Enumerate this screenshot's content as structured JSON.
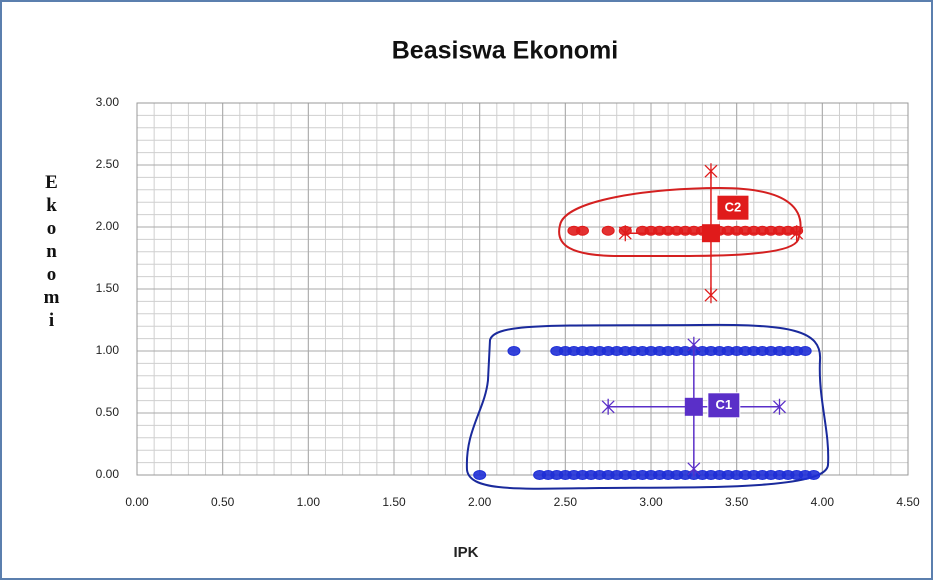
{
  "chart_data": {
    "type": "scatter",
    "title": "Beasiswa Ekonomi",
    "xlabel": "IPK",
    "ylabel": "Ekonomi",
    "xlim": [
      0,
      4.5
    ],
    "ylim": [
      0,
      3
    ],
    "xticks": [
      {
        "value": 0,
        "label": "0.00"
      },
      {
        "value": 0.5,
        "label": "0.50"
      },
      {
        "value": 1,
        "label": "1.00"
      },
      {
        "value": 1.5,
        "label": "1.50"
      },
      {
        "value": 2,
        "label": "2.00"
      },
      {
        "value": 2.5,
        "label": "2.50"
      },
      {
        "value": 3,
        "label": "3.00"
      },
      {
        "value": 3.5,
        "label": "3.50"
      },
      {
        "value": 4,
        "label": "4.00"
      },
      {
        "value": 4.5,
        "label": "4.50"
      }
    ],
    "yticks": [
      {
        "value": 0,
        "label": "0.00"
      },
      {
        "value": 0.5,
        "label": "0.50"
      },
      {
        "value": 1,
        "label": "1.00"
      },
      {
        "value": 1.5,
        "label": "1.50"
      },
      {
        "value": 2,
        "label": "2.00"
      },
      {
        "value": 2.5,
        "label": "2.50"
      },
      {
        "value": 3,
        "label": "3.00"
      }
    ],
    "grid": true,
    "xminor": 0.1,
    "yminor": 0.1,
    "series": [
      {
        "color": "#1f2fd6",
        "x": [
          2.0,
          2.35,
          2.4,
          2.45,
          2.5,
          2.55,
          2.6,
          2.65,
          2.7,
          2.75,
          2.8,
          2.85,
          2.9,
          2.95,
          3.0,
          3.05,
          3.1,
          3.15,
          3.2,
          3.25,
          3.3,
          3.35,
          3.4,
          3.45,
          3.5,
          3.55,
          3.6,
          3.65,
          3.7,
          3.75,
          3.8,
          3.85,
          3.9,
          3.95
        ],
        "values": [
          0,
          0,
          0,
          0,
          0,
          0,
          0,
          0,
          0,
          0,
          0,
          0,
          0,
          0,
          0,
          0,
          0,
          0,
          0,
          0,
          0,
          0,
          0,
          0,
          0,
          0,
          0,
          0,
          0,
          0,
          0,
          0,
          0,
          0
        ]
      },
      {
        "color": "#1f2fd6",
        "x": [
          2.2,
          2.45,
          2.5,
          2.55,
          2.6,
          2.65,
          2.7,
          2.75,
          2.8,
          2.85,
          2.9,
          2.95,
          3.0,
          3.05,
          3.1,
          3.15,
          3.2,
          3.25,
          3.3,
          3.35,
          3.4,
          3.45,
          3.5,
          3.55,
          3.6,
          3.65,
          3.7,
          3.75,
          3.8,
          3.85,
          3.9
        ],
        "values": [
          1,
          1,
          1,
          1,
          1,
          1,
          1,
          1,
          1,
          1,
          1,
          1,
          1,
          1,
          1,
          1,
          1,
          1,
          1,
          1,
          1,
          1,
          1,
          1,
          1,
          1,
          1,
          1,
          1,
          1,
          1
        ]
      },
      {
        "color": "#e01b1b",
        "x": [
          2.55,
          2.6,
          2.75,
          2.85,
          2.95,
          3.0,
          3.05,
          3.1,
          3.15,
          3.2,
          3.25,
          3.3,
          3.35,
          3.4,
          3.45,
          3.5,
          3.55,
          3.6,
          3.65,
          3.7,
          3.75,
          3.8,
          3.85
        ],
        "values": [
          1.97,
          1.97,
          1.97,
          1.97,
          1.97,
          1.97,
          1.97,
          1.97,
          1.97,
          1.97,
          1.97,
          1.97,
          1.97,
          1.97,
          1.97,
          1.97,
          1.97,
          1.97,
          1.97,
          1.97,
          1.97,
          1.97,
          1.97
        ]
      }
    ],
    "centroids": [
      {
        "label": "C1",
        "x": 3.25,
        "y": 0.55,
        "xerr": 0.5,
        "yerr": 0.5,
        "color": "#5a2fc8"
      },
      {
        "label": "C2",
        "x": 3.35,
        "y": 1.95,
        "xerr": 0.5,
        "yerr": 0.5,
        "color": "#e01b1b"
      }
    ]
  }
}
